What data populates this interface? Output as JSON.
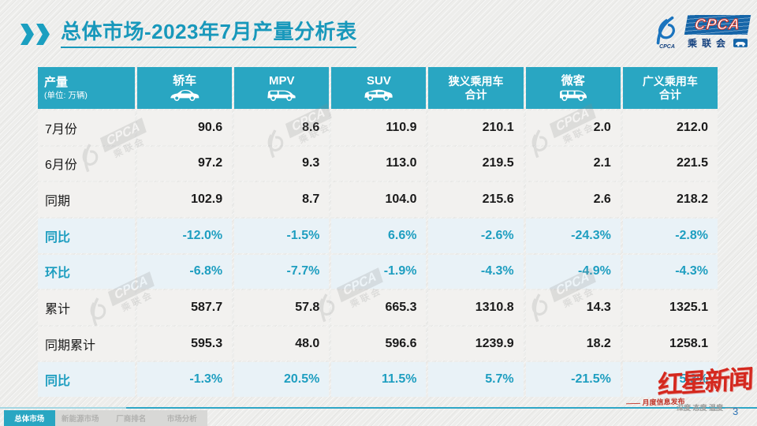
{
  "title": {
    "prefix": "总体市场",
    "rest": "-2023年7月产量分析表"
  },
  "logo": {
    "swoosh_caption": "CPCA",
    "box_text": "CPCA",
    "org_text": "乘联会"
  },
  "table": {
    "corner": {
      "title": "产量",
      "unit": "(单位: 万辆)"
    },
    "columns": [
      {
        "lines": [
          "轿车"
        ],
        "icon": "sedan-icon"
      },
      {
        "lines": [
          "MPV"
        ],
        "icon": "mpv-icon"
      },
      {
        "lines": [
          "SUV"
        ],
        "icon": "suv-icon"
      },
      {
        "lines": [
          "狭义乘用车",
          "合计"
        ],
        "icon": ""
      },
      {
        "lines": [
          "微客"
        ],
        "icon": "microvan-icon"
      },
      {
        "lines": [
          "广义乘用车",
          "合计"
        ],
        "icon": ""
      }
    ],
    "rows": [
      {
        "label": "7月份",
        "type": "value",
        "cells": [
          "90.6",
          "8.6",
          "110.9",
          "210.1",
          "2.0",
          "212.0"
        ]
      },
      {
        "label": "6月份",
        "type": "value",
        "cells": [
          "97.2",
          "9.3",
          "113.0",
          "219.5",
          "2.1",
          "221.5"
        ]
      },
      {
        "label": "同期",
        "type": "value",
        "cells": [
          "102.9",
          "8.7",
          "104.0",
          "215.6",
          "2.6",
          "218.2"
        ]
      },
      {
        "label": "同比",
        "type": "percent",
        "cells": [
          "-12.0%",
          "-1.5%",
          "6.6%",
          "-2.6%",
          "-24.3%",
          "-2.8%"
        ]
      },
      {
        "label": "环比",
        "type": "percent",
        "cells": [
          "-6.8%",
          "-7.7%",
          "-1.9%",
          "-4.3%",
          "-4.9%",
          "-4.3%"
        ]
      },
      {
        "label": "累计",
        "type": "value",
        "cells": [
          "587.7",
          "57.8",
          "665.3",
          "1310.8",
          "14.3",
          "1325.1"
        ]
      },
      {
        "label": "同期累计",
        "type": "value",
        "cells": [
          "595.3",
          "48.0",
          "596.6",
          "1239.9",
          "18.2",
          "1258.1"
        ]
      },
      {
        "label": "同比",
        "type": "percent",
        "cells": [
          "-1.3%",
          "20.5%",
          "11.5%",
          "5.7%",
          "-21.5%",
          "5.3%"
        ]
      }
    ]
  },
  "chart_data": {
    "type": "table",
    "title": "总体市场-2023年7月产量分析表",
    "unit": "万辆",
    "columns": [
      "轿车",
      "MPV",
      "SUV",
      "狭义乘用车合计",
      "微客",
      "广义乘用车合计"
    ],
    "series": [
      {
        "name": "7月份",
        "values": [
          90.6,
          8.6,
          110.9,
          210.1,
          2.0,
          212.0
        ]
      },
      {
        "name": "6月份",
        "values": [
          97.2,
          9.3,
          113.0,
          219.5,
          2.1,
          221.5
        ]
      },
      {
        "name": "同期",
        "values": [
          102.9,
          8.7,
          104.0,
          215.6,
          2.6,
          218.2
        ]
      },
      {
        "name": "同比",
        "values": [
          "-12.0%",
          "-1.5%",
          "6.6%",
          "-2.6%",
          "-24.3%",
          "-2.8%"
        ]
      },
      {
        "name": "环比",
        "values": [
          "-6.8%",
          "-7.7%",
          "-1.9%",
          "-4.3%",
          "-4.9%",
          "-4.3%"
        ]
      },
      {
        "name": "累计",
        "values": [
          587.7,
          57.8,
          665.3,
          1310.8,
          14.3,
          1325.1
        ]
      },
      {
        "name": "同期累计",
        "values": [
          595.3,
          48.0,
          596.6,
          1239.9,
          18.2,
          1258.1
        ]
      },
      {
        "name": "同比(累计)",
        "values": [
          "-1.3%",
          "20.5%",
          "11.5%",
          "5.7%",
          "-21.5%",
          "5.3%"
        ]
      }
    ]
  },
  "watermark": {
    "news_logo": "红星新闻",
    "cpca_box": "CPCA",
    "cpca_org": "乘联会"
  },
  "footer": {
    "release_label": "—— 月度信息发布",
    "slogan": "深度 态度 温度 ——",
    "page_number": "3"
  },
  "nav": {
    "items": [
      {
        "label": "总体市场",
        "active": true
      },
      {
        "label": "新能源市场",
        "active": false
      },
      {
        "label": "厂商排名",
        "active": false
      },
      {
        "label": "市场分析",
        "active": false
      }
    ]
  },
  "colors": {
    "accent_teal": "#29A6C2",
    "title_teal": "#1898BB",
    "percent_text": "#1E9EC0",
    "news_red": "#D4281E",
    "page_number_blue": "#2E74B5"
  }
}
